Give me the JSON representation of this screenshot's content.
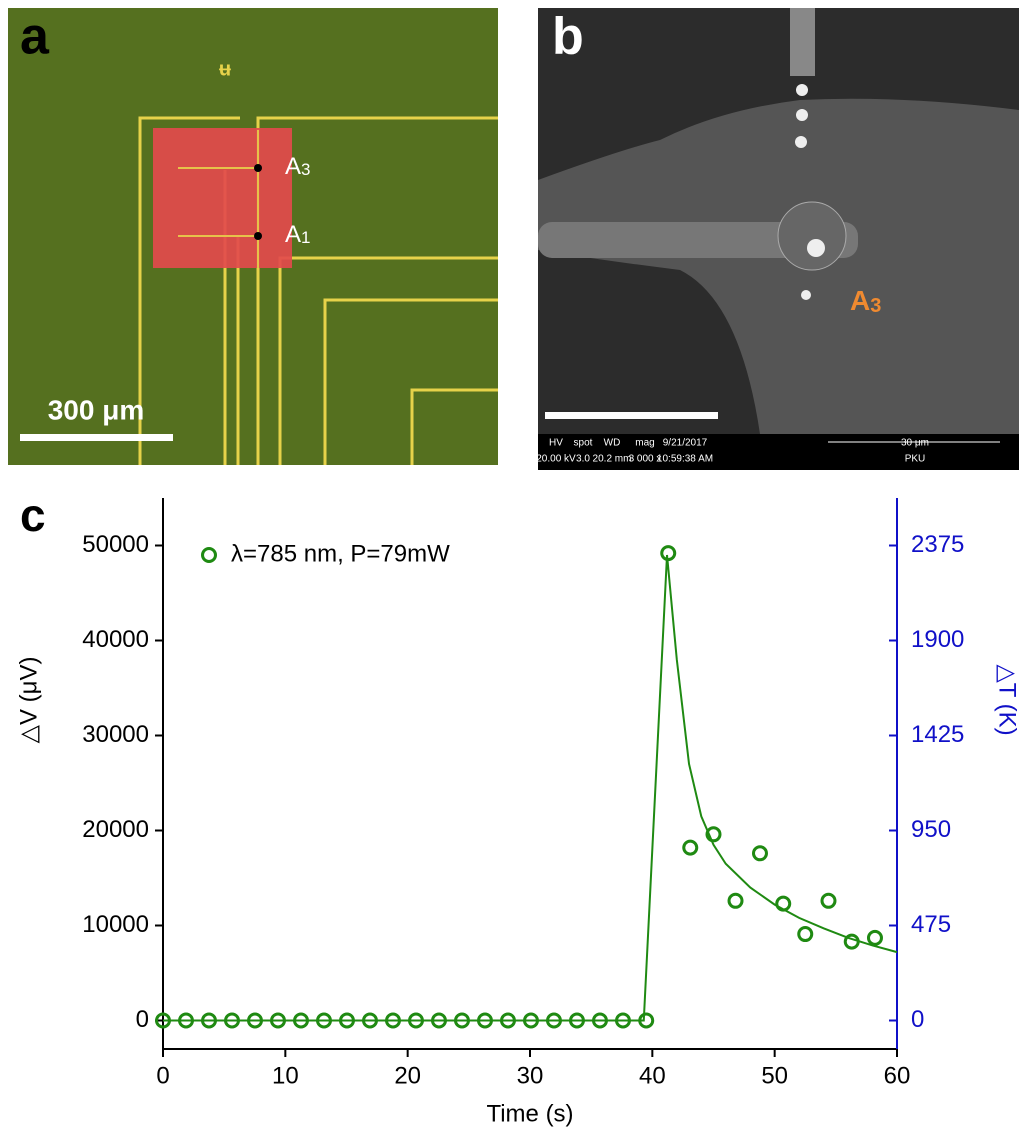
{
  "panels": {
    "a": {
      "label": "a",
      "points": [
        {
          "letter": "A",
          "sub": "3"
        },
        {
          "letter": "A",
          "sub": "1"
        }
      ],
      "scale_bar": "300 μm"
    },
    "b": {
      "label": "b",
      "point": {
        "letter": "A",
        "sub": "3"
      },
      "footer": {
        "headers": [
          "HV",
          "spot",
          "WD",
          "mag",
          "9/21/2017",
          "30 μm"
        ],
        "values": [
          "20.00 kV",
          "3.0",
          "20.2 mm",
          "3 000 x",
          "10:59:38 AM",
          "PKU"
        ]
      }
    },
    "c": {
      "label": "c"
    }
  },
  "chart_data": {
    "type": "scatter",
    "xlabel": "Time (s)",
    "ylabel": "△V (μV)",
    "y2label": "△T (K)",
    "xlim": [
      0,
      60
    ],
    "xticks": [
      0,
      10,
      20,
      30,
      40,
      50,
      60
    ],
    "ylim": [
      -3000,
      55000
    ],
    "yticks": [
      0,
      10000,
      20000,
      30000,
      40000,
      50000
    ],
    "y2lim": [
      -142.5,
      2612.5
    ],
    "y2ticks": [
      0,
      475,
      950,
      1425,
      1900,
      2375
    ],
    "y2color": "#1010c8",
    "legend": "upper left",
    "series": [
      {
        "name": "λ=785 nm, P=79mW",
        "color": "#1f8a12",
        "style": "markers",
        "x": [
          0,
          1.88,
          3.76,
          5.64,
          7.52,
          9.4,
          11.28,
          13.16,
          15.04,
          16.92,
          18.8,
          20.68,
          22.56,
          24.44,
          26.32,
          28.2,
          30.08,
          31.96,
          33.84,
          35.72,
          37.6,
          39.5,
          41.3,
          43.1,
          45.0,
          46.8,
          48.8,
          50.7,
          52.5,
          54.4,
          56.3,
          58.2
        ],
        "values": [
          0,
          0,
          0,
          0,
          0,
          0,
          0,
          0,
          0,
          0,
          0,
          0,
          0,
          0,
          0,
          0,
          0,
          0,
          0,
          0,
          0,
          0,
          49200,
          18200,
          19600,
          12600,
          17600,
          12300,
          9100,
          12600,
          8300,
          8700
        ]
      },
      {
        "color": "#1f8a12",
        "style": "line",
        "x": [
          0,
          39.3,
          41.2,
          42,
          43,
          44,
          45,
          46,
          48,
          50,
          52,
          54,
          56,
          58,
          60
        ],
        "values": [
          0,
          0,
          49000,
          38000,
          27000,
          21500,
          18500,
          16500,
          14000,
          12200,
          10800,
          9700,
          8700,
          7900,
          7200
        ]
      }
    ]
  }
}
